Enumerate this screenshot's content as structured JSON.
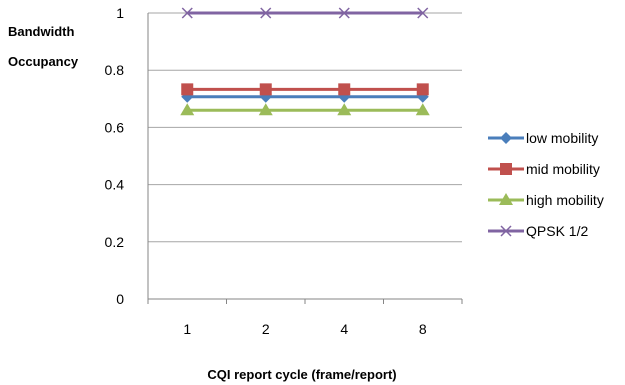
{
  "chart_data": {
    "type": "line",
    "categories": [
      "1",
      "2",
      "4",
      "8"
    ],
    "ylabel_line1": "Bandwidth",
    "ylabel_line2": "Occupancy",
    "xlabel": "CQI report cycle (frame/report)",
    "ylim": [
      0,
      1
    ],
    "yticks": [
      "0",
      "0.2",
      "0.4",
      "0.6",
      "0.8",
      "1"
    ],
    "grid": "horizontal",
    "legend_position": "right",
    "series": [
      {
        "name": "low mobility",
        "values": [
          0.707,
          0.707,
          0.707,
          0.707
        ],
        "color": "#4a7ebb",
        "marker": "diamond"
      },
      {
        "name": "mid mobility",
        "values": [
          0.733,
          0.733,
          0.733,
          0.733
        ],
        "color": "#c0504d",
        "marker": "square"
      },
      {
        "name": "high mobility",
        "values": [
          0.66,
          0.66,
          0.66,
          0.66
        ],
        "color": "#9bbb59",
        "marker": "triangle"
      },
      {
        "name": "QPSK 1/2",
        "values": [
          1.0,
          1.0,
          1.0,
          1.0
        ],
        "color": "#8064a2",
        "marker": "x"
      }
    ]
  }
}
